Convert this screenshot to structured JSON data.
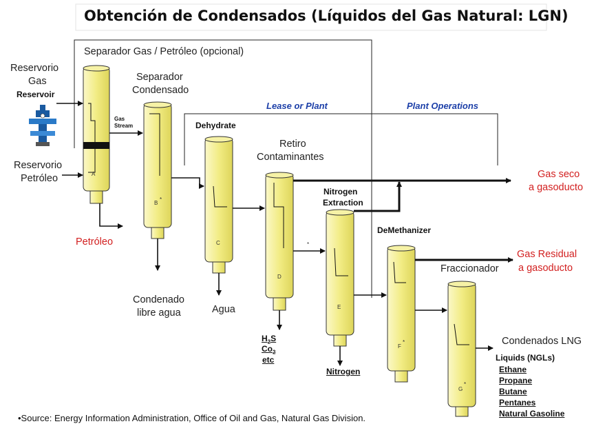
{
  "title": "Obtención de Condensados (Líquidos del Gas Natural: LGN)",
  "labels": {
    "separator_group": "Separador Gas / Petróleo (opcional)",
    "reservoir_gas_es_1": "Reservorio",
    "reservoir_gas_es_2": "Gas",
    "reservoir_en": "Reservoir",
    "reservoir_oil_1": "Reservorio",
    "reservoir_oil_2": "Petróleo",
    "petroleo": "Petróleo",
    "sep_cond_1": "Separador",
    "sep_cond_2": "Condensado",
    "gas_stream_1": "Gas",
    "gas_stream_2": "Stream",
    "dehydrate": "Dehydrate",
    "lease_or_plant": "Lease or Plant",
    "plant_operations": "Plant Operations",
    "retiro_1": "Retiro",
    "retiro_2": "Contaminantes",
    "nitrogen_extraction_1": "Nitrogen",
    "nitrogen_extraction_2": "Extraction",
    "demethanizer": "DeMethanizer",
    "gas_seco_1": "Gas seco",
    "gas_seco_2": "a gasoducto",
    "gas_residual_1": "Gas Residual",
    "gas_residual_2": "a gasoducto",
    "fraccionador": "Fraccionador",
    "condenado_1": "Condenado",
    "condenado_2": "libre agua",
    "agua": "Agua",
    "h2s": "H",
    "h2s_sub": "2",
    "h2s_end": "S",
    "co2": "Co",
    "co2_sub": "2",
    "etc": "etc",
    "nitrogen": "Nitrogen",
    "condensados_lng": "Condenados LNG",
    "liquids_title": "Liquids (NGLs)",
    "liquids": [
      "Ethane",
      "Propane",
      "Butane",
      "Pentanes",
      "Natural Gasoline"
    ],
    "source": "•Source: Energy Information Administration, Office of Oil and Gas, Natural Gas Division.",
    "vessel_letters": [
      "A",
      "B",
      "C",
      "D",
      "E",
      "F",
      "G"
    ],
    "star": "*"
  },
  "colors": {
    "vessel_fill": "#f3ee8f",
    "vessel_stroke": "#333333",
    "red_text": "#d21f1f",
    "blue_text": "#1c3fa8"
  }
}
